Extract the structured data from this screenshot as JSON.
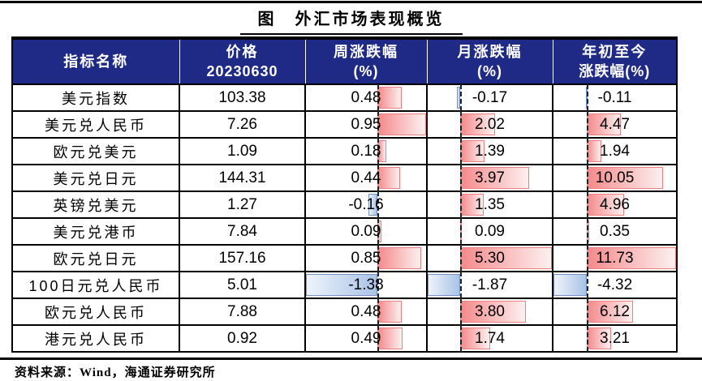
{
  "figure": {
    "title": "图　外汇市场表现概览",
    "source_note": "资料来源：Wind，海通证券研究所"
  },
  "colors": {
    "header_bg": "#1f2a87",
    "positive_bar_border": "#ef7e7e",
    "positive_bar_fill_start": "#f5898b",
    "positive_bar_fill_end": "#fdf0f0",
    "negative_bar_border": "#7292c4",
    "negative_bar_fill_start": "#eef3fb",
    "negative_bar_fill_end": "#a9c3e7",
    "axis_dash": "#222222",
    "rule": "#000000"
  },
  "header": {
    "cols": [
      {
        "l1": "指标名称",
        "l2": ""
      },
      {
        "l1": "价格",
        "l2": "20230630"
      },
      {
        "l1": "周涨跌幅",
        "l2": "(%)"
      },
      {
        "l1": "月涨跌幅",
        "l2": "(%)"
      },
      {
        "l1": "年初至今",
        "l2": "涨跌幅(%)"
      }
    ]
  },
  "chart_data": {
    "type": "table",
    "title": "图　外汇市场表现概览",
    "columns": [
      "指标名称",
      "价格 20230630",
      "周涨跌幅(%)",
      "月涨跌幅(%)",
      "年初至今涨跌幅(%)"
    ],
    "bar_note": "in-cell data bars: positive=red gradient right of dashed zero axis, negative=blue gradient left of axis; bar length proportional to |value|/(max-min) of each column",
    "rows": [
      {
        "name": "美元指数",
        "price": 103.38,
        "week": 0.48,
        "month": -0.17,
        "ytd": -0.11
      },
      {
        "name": "美元兑人民币",
        "price": 7.26,
        "week": 0.95,
        "month": 2.02,
        "ytd": 4.47
      },
      {
        "name": "欧元兑美元",
        "price": 1.09,
        "week": 0.18,
        "month": 1.39,
        "ytd": 1.94
      },
      {
        "name": "美元兑日元",
        "price": 144.31,
        "week": 0.44,
        "month": 3.97,
        "ytd": 10.05
      },
      {
        "name": "英镑兑美元",
        "price": 1.27,
        "week": -0.16,
        "month": 1.35,
        "ytd": 4.96
      },
      {
        "name": "美元兑港币",
        "price": 7.84,
        "week": 0.09,
        "month": 0.09,
        "ytd": 0.35
      },
      {
        "name": "欧元兑日元",
        "price": 157.16,
        "week": 0.85,
        "month": 5.3,
        "ytd": 11.73
      },
      {
        "name": "100日元兑人民币",
        "price": 5.01,
        "week": -1.38,
        "month": -1.87,
        "ytd": -4.32
      },
      {
        "name": "欧元兑人民币",
        "price": 7.88,
        "week": 0.48,
        "month": 3.8,
        "ytd": 6.12
      },
      {
        "name": "港元兑人民币",
        "price": 0.92,
        "week": 0.49,
        "month": 1.74,
        "ytd": 3.21
      }
    ]
  }
}
